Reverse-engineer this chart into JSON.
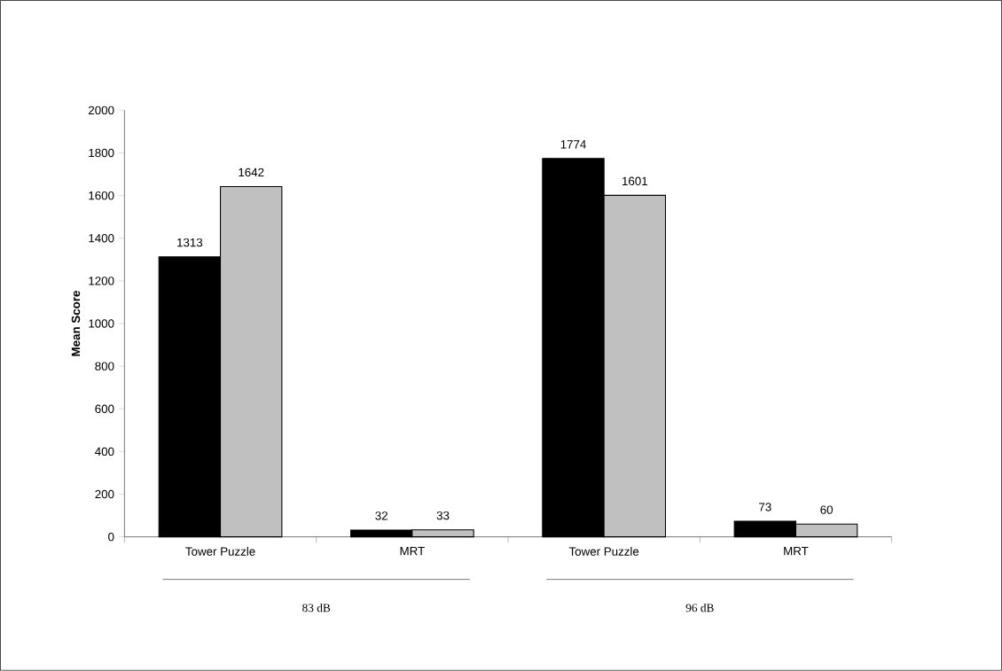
{
  "chart_data": {
    "type": "bar",
    "ylabel": "Mean Score",
    "categories": [
      "Tower Puzzle",
      "MRT",
      "Tower Puzzle",
      "MRT"
    ],
    "series": [
      {
        "color": "#000000",
        "values": [
          1313,
          32,
          1774,
          73
        ]
      },
      {
        "color": "#c0c0c0",
        "values": [
          1642,
          33,
          1601,
          60
        ]
      }
    ],
    "ylim": [
      0,
      2000
    ],
    "yticks": [
      0,
      200,
      400,
      600,
      800,
      1000,
      1200,
      1400,
      1600,
      1800,
      2000
    ],
    "data_labels": true,
    "grid": false,
    "annotations": [
      "83 dB",
      "96 dB"
    ]
  }
}
